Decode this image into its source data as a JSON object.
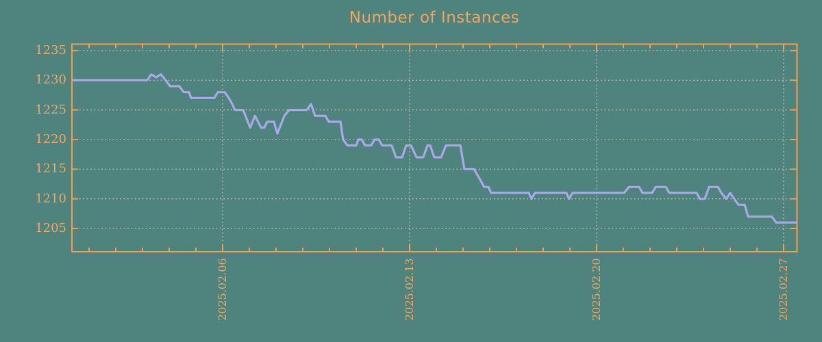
{
  "page": {
    "background_color": "#4e837e"
  },
  "chart_data": {
    "type": "line",
    "title": "Number of Instances",
    "legend": "none",
    "grid": "dotted lines at every y tick and at weekly x ticks",
    "title_color": "#f4a460",
    "label_color": "#f4a460",
    "axis_color": "#f2a04f",
    "grid_color": "#c9bfb3",
    "line_color": "#a9a9e8",
    "x_unit": "days since 2025-02-01",
    "x_range": [
      -0.64,
      26.49
    ],
    "y_range": [
      1201,
      1236
    ],
    "ylabel": "",
    "xlabel": "",
    "y_ticks": [
      1205,
      1210,
      1215,
      1220,
      1225,
      1230,
      1235
    ],
    "x_major_ticks": [
      {
        "day": 5,
        "label": "2025.02.06"
      },
      {
        "day": 12,
        "label": "2025.02.13"
      },
      {
        "day": 19,
        "label": "2025.02.20"
      },
      {
        "day": 26,
        "label": "2025.02.27"
      }
    ],
    "x_minor_tick_days": [
      0,
      1,
      2,
      3,
      4,
      5,
      6,
      7,
      8,
      9,
      10,
      11,
      12,
      13,
      14,
      15,
      16,
      17,
      18,
      19,
      20,
      21,
      22,
      23,
      24,
      25,
      26
    ],
    "series": [
      {
        "name": "Number of Instances",
        "points": [
          [
            -0.64,
            1230
          ],
          [
            2.18,
            1230
          ],
          [
            2.33,
            1231
          ],
          [
            2.51,
            1230.5
          ],
          [
            2.69,
            1231
          ],
          [
            2.87,
            1230
          ],
          [
            3.03,
            1229
          ],
          [
            3.38,
            1229
          ],
          [
            3.54,
            1228
          ],
          [
            3.74,
            1228
          ],
          [
            3.82,
            1227
          ],
          [
            4.69,
            1227
          ],
          [
            4.82,
            1228
          ],
          [
            5.08,
            1228
          ],
          [
            5.23,
            1227
          ],
          [
            5.36,
            1226
          ],
          [
            5.46,
            1225
          ],
          [
            5.77,
            1225
          ],
          [
            6.03,
            1222
          ],
          [
            6.21,
            1224
          ],
          [
            6.44,
            1222
          ],
          [
            6.56,
            1222
          ],
          [
            6.67,
            1223
          ],
          [
            6.92,
            1223
          ],
          [
            7.05,
            1221
          ],
          [
            7.31,
            1224
          ],
          [
            7.49,
            1225
          ],
          [
            8.15,
            1225
          ],
          [
            8.31,
            1226
          ],
          [
            8.46,
            1224
          ],
          [
            8.85,
            1224
          ],
          [
            8.97,
            1223
          ],
          [
            9.41,
            1223
          ],
          [
            9.51,
            1220
          ],
          [
            9.67,
            1219
          ],
          [
            10.0,
            1219
          ],
          [
            10.08,
            1220
          ],
          [
            10.21,
            1220
          ],
          [
            10.33,
            1219
          ],
          [
            10.56,
            1219
          ],
          [
            10.69,
            1220
          ],
          [
            10.85,
            1220
          ],
          [
            10.97,
            1219
          ],
          [
            11.33,
            1219
          ],
          [
            11.49,
            1217
          ],
          [
            11.72,
            1217
          ],
          [
            11.87,
            1219
          ],
          [
            12.05,
            1219
          ],
          [
            12.26,
            1217
          ],
          [
            12.51,
            1217
          ],
          [
            12.67,
            1219
          ],
          [
            12.77,
            1219
          ],
          [
            12.92,
            1217
          ],
          [
            13.18,
            1217
          ],
          [
            13.36,
            1219
          ],
          [
            13.9,
            1219
          ],
          [
            14.05,
            1215
          ],
          [
            14.41,
            1215
          ],
          [
            14.54,
            1214
          ],
          [
            14.67,
            1213
          ],
          [
            14.79,
            1212
          ],
          [
            14.95,
            1212
          ],
          [
            15.05,
            1211
          ],
          [
            16.46,
            1211
          ],
          [
            16.56,
            1210
          ],
          [
            16.69,
            1211
          ],
          [
            17.87,
            1211
          ],
          [
            17.97,
            1210
          ],
          [
            18.1,
            1211
          ],
          [
            20.03,
            1211
          ],
          [
            20.21,
            1212
          ],
          [
            20.59,
            1212
          ],
          [
            20.72,
            1211
          ],
          [
            21.08,
            1211
          ],
          [
            21.21,
            1212
          ],
          [
            21.59,
            1212
          ],
          [
            21.72,
            1211
          ],
          [
            22.74,
            1211
          ],
          [
            22.87,
            1210
          ],
          [
            23.05,
            1210
          ],
          [
            23.21,
            1212
          ],
          [
            23.54,
            1212
          ],
          [
            23.67,
            1211
          ],
          [
            23.85,
            1210
          ],
          [
            24.0,
            1211
          ],
          [
            24.15,
            1210
          ],
          [
            24.31,
            1209
          ],
          [
            24.54,
            1209
          ],
          [
            24.67,
            1207
          ],
          [
            25.56,
            1207
          ],
          [
            25.72,
            1206
          ],
          [
            26.49,
            1206
          ]
        ]
      }
    ]
  }
}
